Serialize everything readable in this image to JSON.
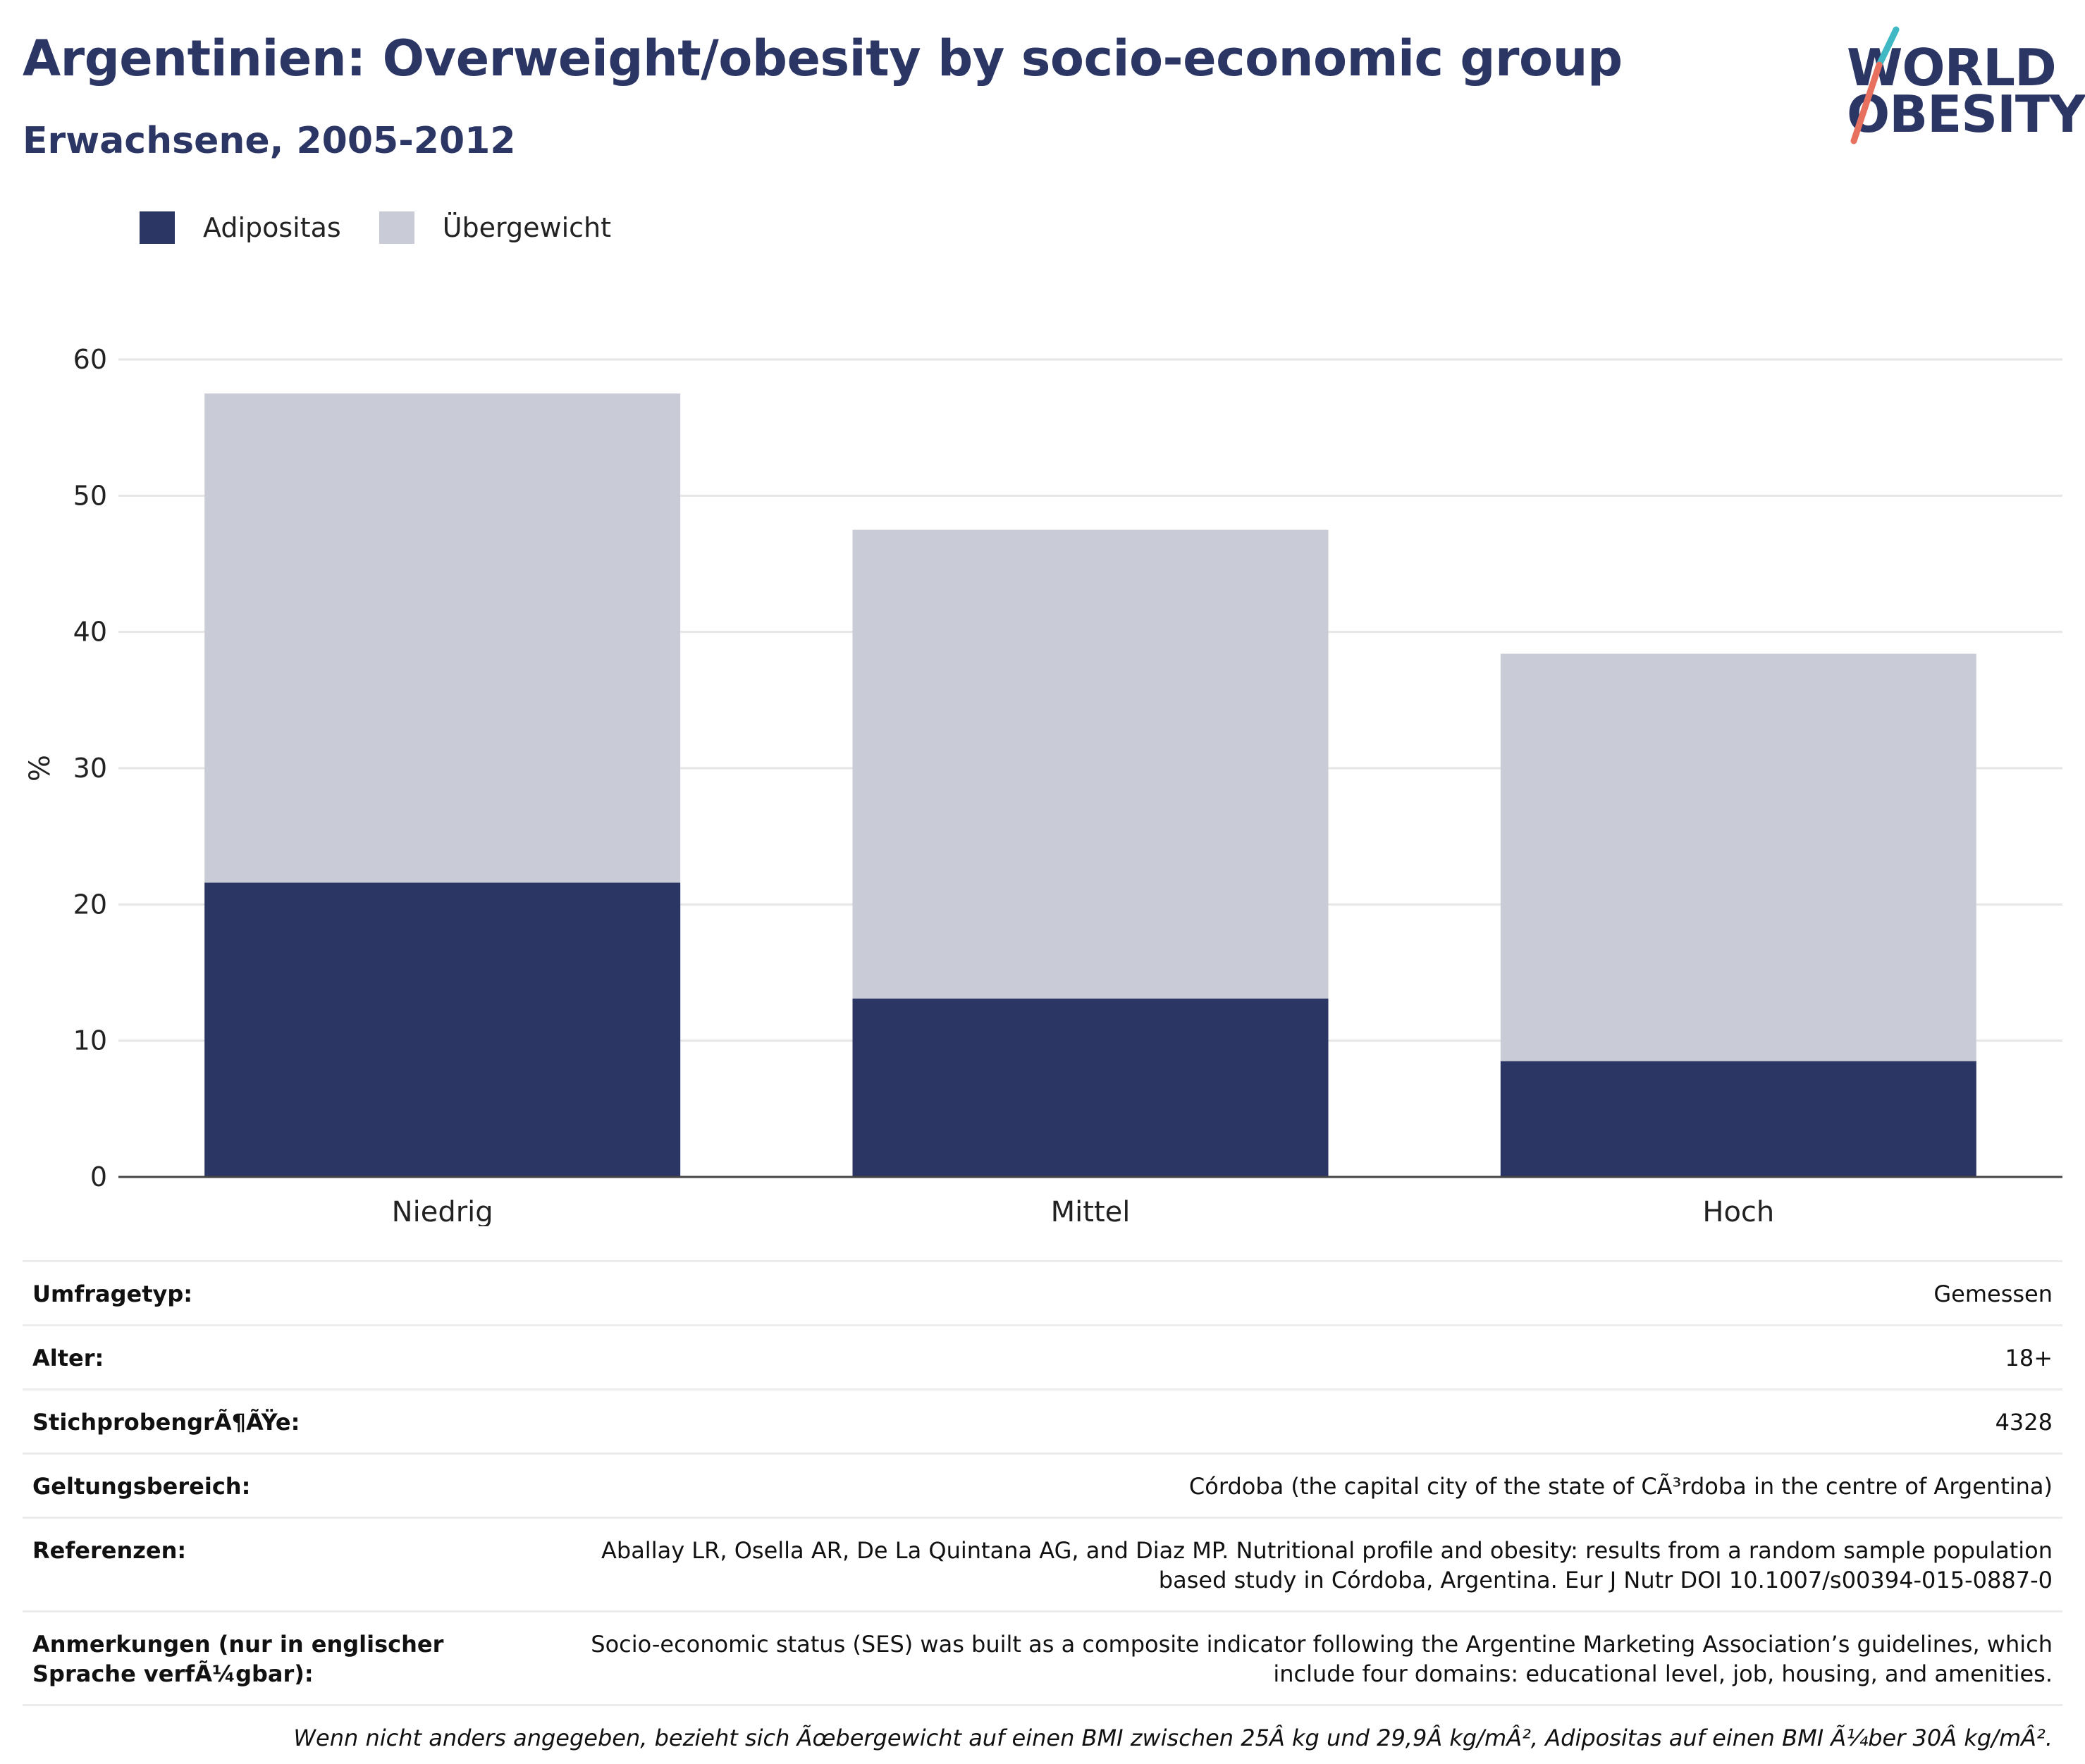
{
  "header": {
    "title": "Argentinien: Overweight/obesity by socio-economic group",
    "subtitle": "Erwachsene, 2005-2012"
  },
  "logo": {
    "line1": "WORLD",
    "line2": "OBESITY",
    "colors": {
      "text": "#2b3664",
      "slash_top": "#3fb8c4",
      "slash_bottom": "#e8705f"
    }
  },
  "legend": [
    {
      "label": "Adipositas",
      "color": "#2b3664"
    },
    {
      "label": "Übergewicht",
      "color": "#c9cbd7"
    }
  ],
  "chart_data": {
    "type": "bar",
    "stacked": true,
    "categories": [
      "Niedrig",
      "Mittel",
      "Hoch"
    ],
    "series": [
      {
        "name": "Adipositas",
        "values": [
          21.6,
          13.1,
          8.5
        ],
        "color": "#2b3664"
      },
      {
        "name": "Übergewicht",
        "values": [
          35.9,
          34.4,
          29.9
        ],
        "color": "#c9cbd7"
      }
    ],
    "ylabel": "%",
    "ylim": [
      0,
      60
    ],
    "yticks": [
      0,
      10,
      20,
      30,
      40,
      50,
      60
    ],
    "grid": true,
    "legend_position": "top-left"
  },
  "info": {
    "survey_type": {
      "label": "Umfragetyp:",
      "value": "Gemessen"
    },
    "age": {
      "label": "Alter:",
      "value": "18+"
    },
    "sample_size": {
      "label": "StichprobengrÃ¶ÃŸe:",
      "value": "4328"
    },
    "coverage": {
      "label": "Geltungsbereich:",
      "value": "Córdoba (the capital city of the state of CÃ³rdoba in the centre of Argentina)"
    },
    "references": {
      "label": "Referenzen:",
      "value": "Aballay LR, Osella AR, De La Quintana AG, and Diaz MP. Nutritional profile and obesity: results from a random sample population based study in Córdoba, Argentina. Eur J Nutr DOI 10.1007/s00394-015-0887-0"
    },
    "notes": {
      "label": "Anmerkungen (nur in englischer Sprache verfÃ¼gbar):",
      "value": "Socio-economic status (SES) was built as a composite indicator following the Argentine Marketing Association’s guidelines, which include four domains: educational level, job, housing, and amenities."
    },
    "footnote": "Wenn nicht anders angegeben, bezieht sich Ãœbergewicht auf einen BMI zwischen 25Â kg und 29,9Â kg/mÂ², Adipositas auf einen BMI Ã¼ber 30Â kg/mÂ²."
  }
}
